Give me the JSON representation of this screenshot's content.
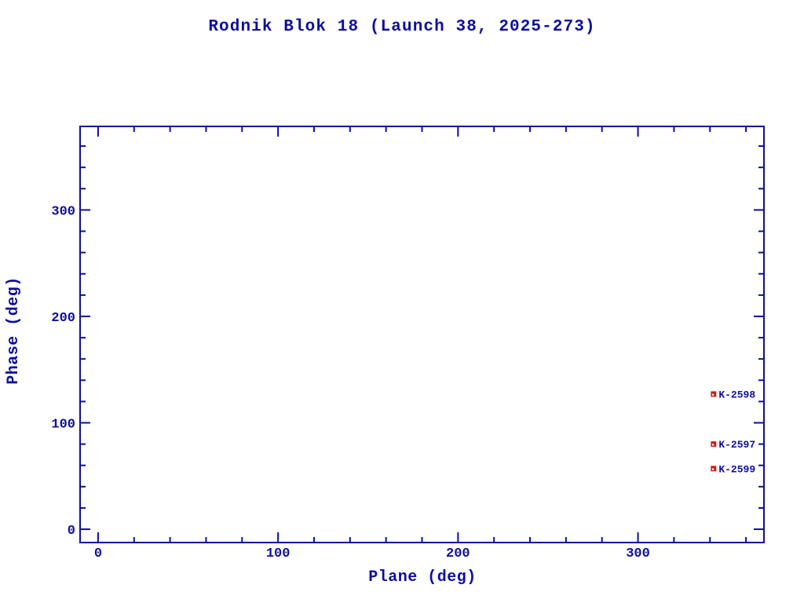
{
  "page": {
    "background": "#ffffff"
  },
  "colors": {
    "text": "#0e0e9c",
    "axis": "#0e0e9c",
    "marker_fill": "#cc2014",
    "marker_notch": "#ffffff"
  },
  "chart_data": {
    "type": "scatter",
    "title": "Rodnik Blok 18 (Launch 38, 2025-273)",
    "xlabel": "Plane (deg)",
    "ylabel": "Phase (deg)",
    "xlim": [
      -10,
      370
    ],
    "ylim": [
      -12.5,
      378.5
    ],
    "x_major_ticks": [
      0,
      100,
      200,
      300
    ],
    "y_major_ticks": [
      0,
      100,
      200,
      300
    ],
    "minor_tick_step": 20,
    "tick_style": "inward ticks on all four sides of box frame",
    "grid": false,
    "legend": "none",
    "marker": "small filled square",
    "points": [
      {
        "label": "K-2598",
        "x": 342,
        "y": 127
      },
      {
        "label": "K-2597",
        "x": 342,
        "y": 80
      },
      {
        "label": "K-2599",
        "x": 342,
        "y": 57
      }
    ]
  }
}
